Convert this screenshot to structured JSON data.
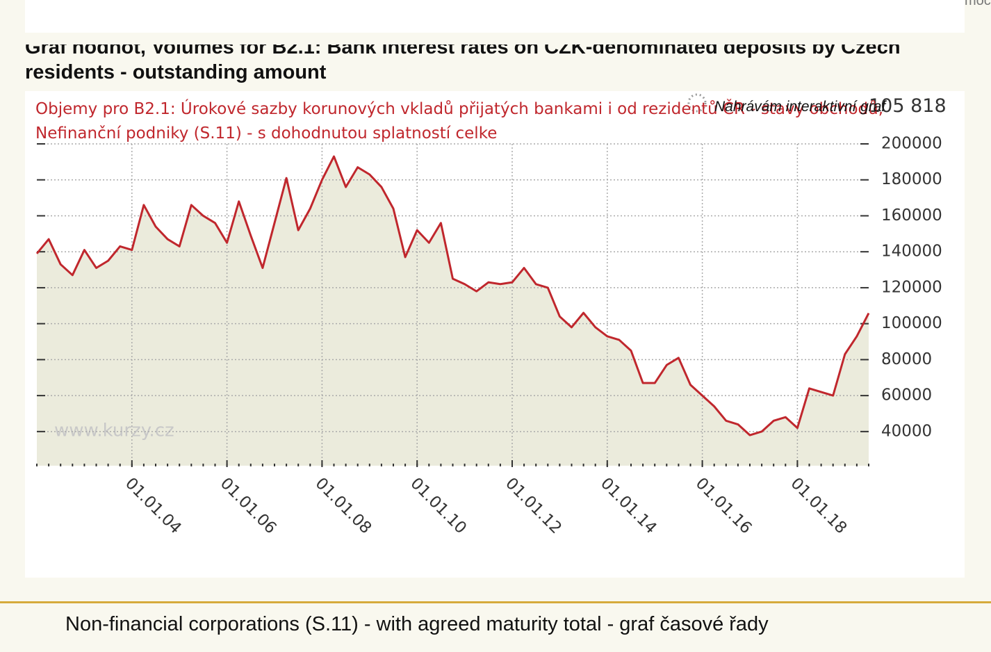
{
  "header": {
    "menu_text": "moc"
  },
  "page_title": "Graf hodnot, Volumes for B2.1: Bank interest rates on CZK-denominated deposits by Czech residents - outstanding amount",
  "loading_text": "Nahrávám interaktivní graf",
  "watermark": "www.kurzy.cz",
  "caption": "Non-financial corporations (S.11) - with agreed maturity total - graf časové řady",
  "chart_data": {
    "type": "line",
    "title": "Objemy pro B2.1: Úrokové sazby korunových vkladů přijatých bankami i od rezidentů ČR - stavy obchodů, Nefinanční podniky (S.11) - s dohodnutou splatností celke",
    "x": [
      "01.01.02",
      "01.04.02",
      "01.07.02",
      "01.10.02",
      "01.01.03",
      "01.04.03",
      "01.07.03",
      "01.10.03",
      "01.01.04",
      "01.04.04",
      "01.07.04",
      "01.10.04",
      "01.01.05",
      "01.04.05",
      "01.07.05",
      "01.10.05",
      "01.01.06",
      "01.04.06",
      "01.07.06",
      "01.10.06",
      "01.01.07",
      "01.04.07",
      "01.07.07",
      "01.10.07",
      "01.01.08",
      "01.04.08",
      "01.07.08",
      "01.10.08",
      "01.01.09",
      "01.04.09",
      "01.07.09",
      "01.10.09",
      "01.01.10",
      "01.04.10",
      "01.07.10",
      "01.10.10",
      "01.01.11",
      "01.04.11",
      "01.07.11",
      "01.10.11",
      "01.01.12",
      "01.04.12",
      "01.07.12",
      "01.10.12",
      "01.01.13",
      "01.04.13",
      "01.07.13",
      "01.10.13",
      "01.01.14",
      "01.04.14",
      "01.07.14",
      "01.10.14",
      "01.01.15",
      "01.04.15",
      "01.07.15",
      "01.10.15",
      "01.01.16",
      "01.04.16",
      "01.07.16",
      "01.10.16",
      "01.01.17",
      "01.04.17",
      "01.07.17",
      "01.10.17",
      "01.01.18",
      "01.04.18",
      "01.07.18",
      "01.10.18",
      "01.01.19",
      "01.04.19",
      "01.07.19"
    ],
    "series": [
      {
        "color": "#c0272d",
        "fill": "#ebebdc",
        "values": [
          139000,
          147000,
          133000,
          127000,
          141000,
          131000,
          135000,
          143000,
          141000,
          166000,
          154000,
          147000,
          143000,
          166000,
          160000,
          156000,
          145000,
          168000,
          149000,
          131000,
          156000,
          181000,
          152000,
          164000,
          180000,
          193000,
          176000,
          187000,
          183000,
          176000,
          164000,
          137000,
          152000,
          145000,
          156000,
          125000,
          122000,
          118000,
          123000,
          122000,
          123000,
          131000,
          122000,
          120000,
          104000,
          98000,
          106000,
          98000,
          93000,
          91000,
          85000,
          67000,
          67000,
          77000,
          81000,
          66000,
          60000,
          54000,
          46000,
          44000,
          38000,
          40000,
          46000,
          48000,
          42000,
          64000,
          62000,
          60000,
          83000,
          93000,
          105818
        ]
      }
    ],
    "last_value": {
      "value": 105818,
      "label": "105 818"
    },
    "xlim": [
      "01.01.02",
      "01.07.19"
    ],
    "xticks": [
      "01.01.04",
      "01.01.06",
      "01.01.08",
      "01.01.10",
      "01.01.12",
      "01.01.14",
      "01.01.16",
      "01.01.18"
    ],
    "ylim": [
      21000,
      200000
    ],
    "yticks": [
      40000,
      60000,
      80000,
      100000,
      120000,
      140000,
      160000,
      180000,
      200000
    ],
    "grid": true
  }
}
